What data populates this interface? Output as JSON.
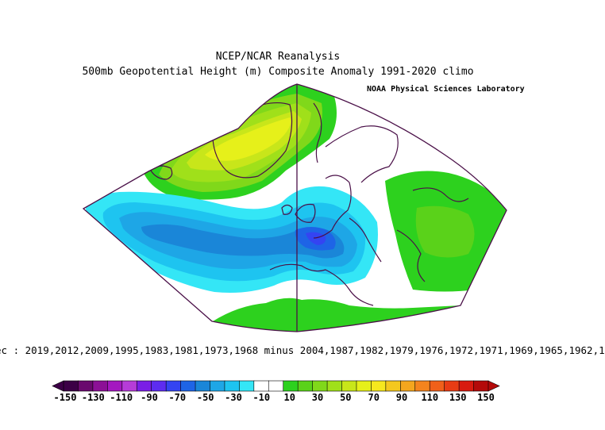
{
  "header": {
    "title": "NCEP/NCAR Reanalysis",
    "subtitle": "500mb Geopotential Height (m) Composite Anomaly 1991-2020 climo",
    "credit": "NOAA Physical Sciences Laboratory"
  },
  "caption": {
    "composite_text": "ec : 2019,2012,2009,1995,1983,1981,1973,1968 minus 2004,1987,1982,1979,1976,1972,1971,1969,1965,1962,1"
  },
  "colorbar": {
    "tick_labels": [
      "-150",
      "-130",
      "-110",
      "-90",
      "-70",
      "-50",
      "-30",
      "-10",
      "10",
      "30",
      "50",
      "70",
      "90",
      "110",
      "130",
      "150"
    ],
    "colors": [
      "#3c0046",
      "#6a0a6e",
      "#8c1096",
      "#a417c0",
      "#b63cd8",
      "#7a1ee6",
      "#5d2cf0",
      "#3444f2",
      "#1e64e6",
      "#1a86d8",
      "#1ea6e6",
      "#1ec4f0",
      "#34e6f6",
      "#ffffff",
      "#ffffff",
      "#2dd11e",
      "#5ad21a",
      "#80d81a",
      "#a0e01a",
      "#c8e61a",
      "#e6f01a",
      "#f6e81e",
      "#f4c81e",
      "#f4a61e",
      "#f4841e",
      "#f0601a",
      "#e83c14",
      "#d81a10",
      "#b40a0a"
    ]
  }
}
